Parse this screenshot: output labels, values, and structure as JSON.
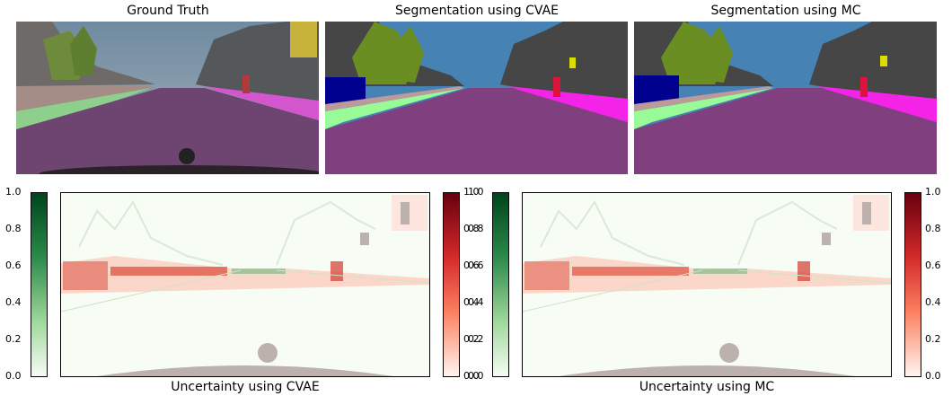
{
  "top_row": {
    "ground_truth_title": "Ground Truth",
    "seg_cvae_title": "Segmentation using CVAE",
    "seg_mc_title": "Segmentation using MC"
  },
  "bottom_row": {
    "unc_cvae_label": "Uncertainty using CVAE",
    "unc_mc_label": "Uncertainty using MC"
  },
  "colorbar_ticks": [
    "1.0",
    "0.8",
    "0.6",
    "0.4",
    "0.2",
    "0.0"
  ],
  "colors": {
    "sky": "#4682b4",
    "building": "#464646",
    "vegetation": "#6b8e23",
    "road": "#804080",
    "sidewalk": "#f423e8",
    "terrain": "#98fb98",
    "car": "#00008e",
    "person": "#dc143c",
    "sign": "#dcdc00",
    "green_cmap_top": "#00441b",
    "red_cmap_top": "#67000d"
  }
}
